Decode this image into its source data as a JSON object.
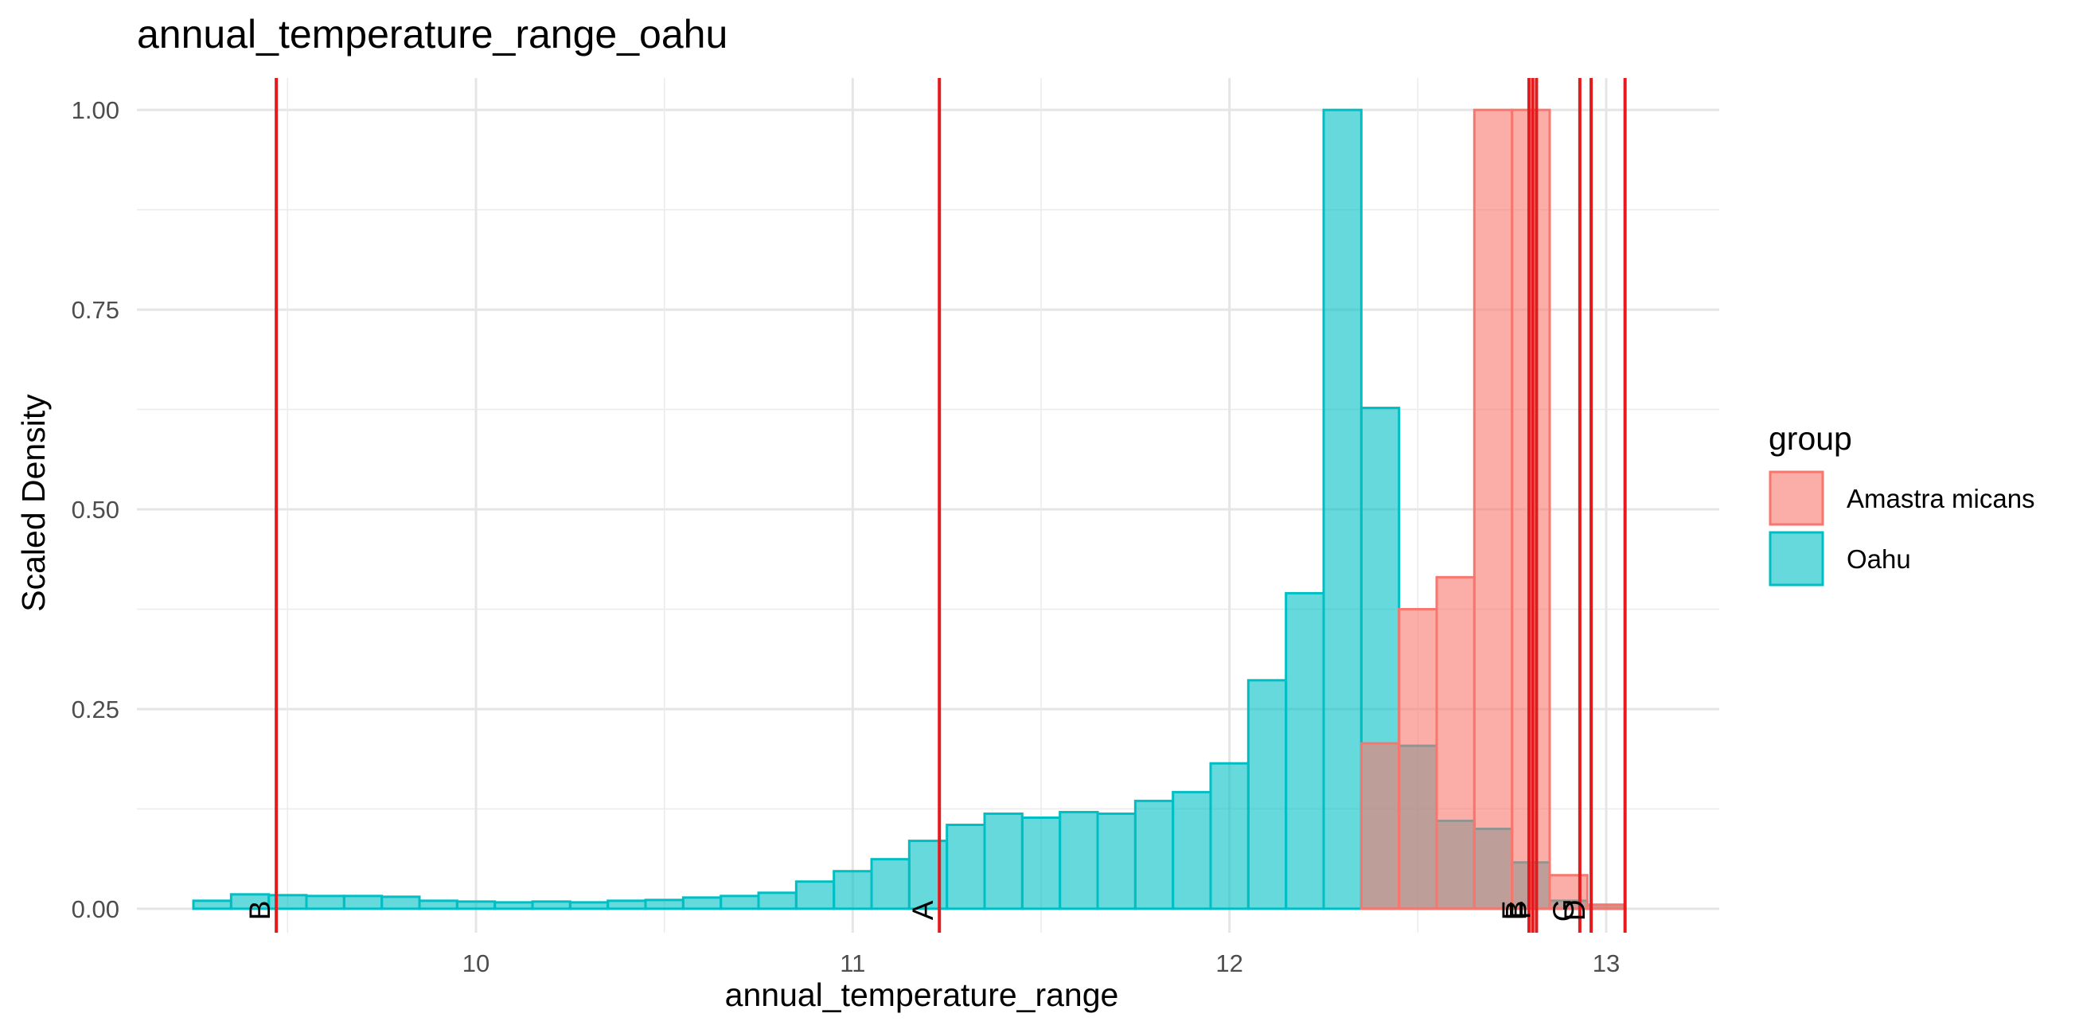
{
  "chart_data": {
    "type": "bar",
    "title": "annual_temperature_range_oahu",
    "xlabel": "annual_temperature_range",
    "ylabel": "Scaled Density",
    "xlim": [
      9.1,
      13.3
    ],
    "ylim": [
      -0.03,
      1.04
    ],
    "xticks": [
      10,
      11,
      12,
      13
    ],
    "xtick_labels": [
      "10",
      "11",
      "12",
      "13"
    ],
    "yticks": [
      0,
      0.25,
      0.5,
      0.75,
      1.0
    ],
    "ytick_labels": [
      "0.00",
      "0.25",
      "0.50",
      "0.75",
      "1.00"
    ],
    "grid": true,
    "bin_width": 0.1,
    "legend": {
      "title": "group",
      "position": "right",
      "entries": [
        {
          "label": "Amastra micans",
          "fill": "#F8766D"
        },
        {
          "label": "Oahu",
          "fill": "#00BFC4"
        }
      ]
    },
    "series": [
      {
        "name": "Oahu",
        "color": "#00BFC4",
        "bin_starts": [
          9.25,
          9.35,
          9.45,
          9.55,
          9.65,
          9.75,
          9.85,
          9.95,
          10.05,
          10.15,
          10.25,
          10.35,
          10.45,
          10.55,
          10.65,
          10.75,
          10.85,
          10.95,
          11.05,
          11.15,
          11.25,
          11.35,
          11.45,
          11.55,
          11.65,
          11.75,
          11.85,
          11.95,
          12.05,
          12.15,
          12.25,
          12.35,
          12.45,
          12.55,
          12.65,
          12.75,
          12.85,
          12.95
        ],
        "values": [
          0.01,
          0.018,
          0.017,
          0.016,
          0.016,
          0.015,
          0.01,
          0.009,
          0.008,
          0.009,
          0.008,
          0.01,
          0.011,
          0.014,
          0.016,
          0.02,
          0.034,
          0.047,
          0.062,
          0.085,
          0.105,
          0.119,
          0.114,
          0.121,
          0.119,
          0.135,
          0.146,
          0.182,
          0.286,
          0.395,
          1.0,
          0.627,
          0.204,
          0.11,
          0.1,
          0.058,
          0.01,
          0.005
        ]
      },
      {
        "name": "Amastra micans",
        "color": "#F8766D",
        "bin_starts": [
          12.35,
          12.45,
          12.55,
          12.65,
          12.75,
          12.85,
          12.95
        ],
        "values": [
          0.207,
          0.375,
          0.415,
          1.0,
          1.0,
          0.042,
          0.005
        ]
      }
    ],
    "vlines": [
      {
        "label": "B",
        "x": 9.47
      },
      {
        "label": "A",
        "x": 11.23
      },
      {
        "label": "E",
        "x": 12.795
      },
      {
        "label": "B",
        "x": 12.805
      },
      {
        "label": "F",
        "x": 12.815
      },
      {
        "label": "G",
        "x": 12.93
      },
      {
        "label": "D",
        "x": 12.96
      },
      {
        "label": "",
        "x": 13.05
      }
    ],
    "vline_color": "#E41A1C"
  }
}
